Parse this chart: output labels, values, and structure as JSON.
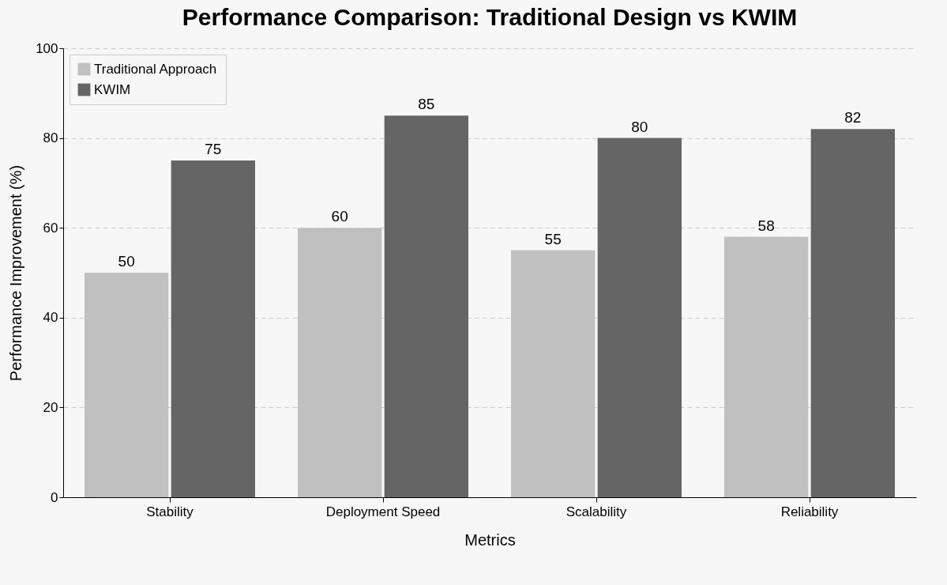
{
  "chart_data": {
    "type": "bar",
    "title": "Performance Comparison: Traditional Design vs KWIM",
    "xlabel": "Metrics",
    "ylabel": "Performance Improvement (%)",
    "categories": [
      "Stability",
      "Deployment Speed",
      "Scalability",
      "Reliability"
    ],
    "series": [
      {
        "name": "Traditional Approach",
        "color": "#c0c0c0",
        "values": [
          50,
          60,
          55,
          58
        ]
      },
      {
        "name": "KWIM",
        "color": "#656565",
        "values": [
          75,
          85,
          80,
          82
        ]
      }
    ],
    "ylim": [
      0,
      100
    ],
    "yticks": [
      0,
      20,
      40,
      60,
      80,
      100
    ],
    "grid": "y",
    "legend": "top left",
    "data_labels": true
  }
}
